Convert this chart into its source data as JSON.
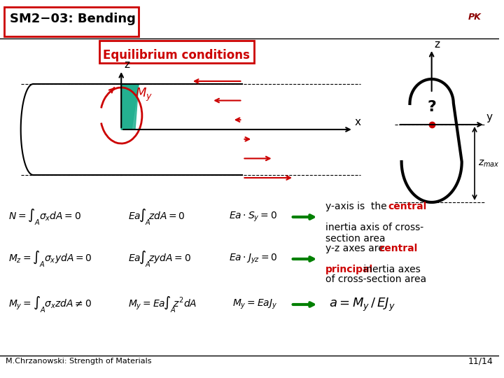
{
  "title": "SM2−03: Bending",
  "subtitle": "Equilibrium conditions",
  "bg_color": "#ffffff",
  "title_box_color": "#cc0000",
  "subtitle_box_color": "#cc0000",
  "beam_color": "#000000",
  "green_color": "#008080",
  "red_color": "#cc0000",
  "cross_section_color": "#000000",
  "footer_left": "M.Chrzanowski: Strength of Materials",
  "footer_right": "11/14",
  "eq1": "N = \\int_{A} \\sigma_x dA = 0 \\quad Ea\\!\\int_{A}\\!zdA = 0 \\quad Ea\\cdot S_y = 0",
  "eq2": "M_z = \\int_{A}\\sigma_x y dA = 0 \\quad Ea\\!\\int_{A}\\!zydA = 0 \\quad Ea\\cdot J_{yz} = 0",
  "eq3": "M_y = \\int_{A}\\sigma_x zdA \\neq 0 \\quad M_y = Ea\\!\\int_{A}\\!z^2 dA \\quad M_y = EaJ_y",
  "text1a": "y-axis is  the ",
  "text1b": "central",
  "text1c": " inertia axis of cross-\nsection area",
  "text2a": "y-z axes are ",
  "text2b": "central\nprincipal",
  "text2c": " inertia axes\nof cross-section area",
  "text3": "a = M_y / EJ_y"
}
